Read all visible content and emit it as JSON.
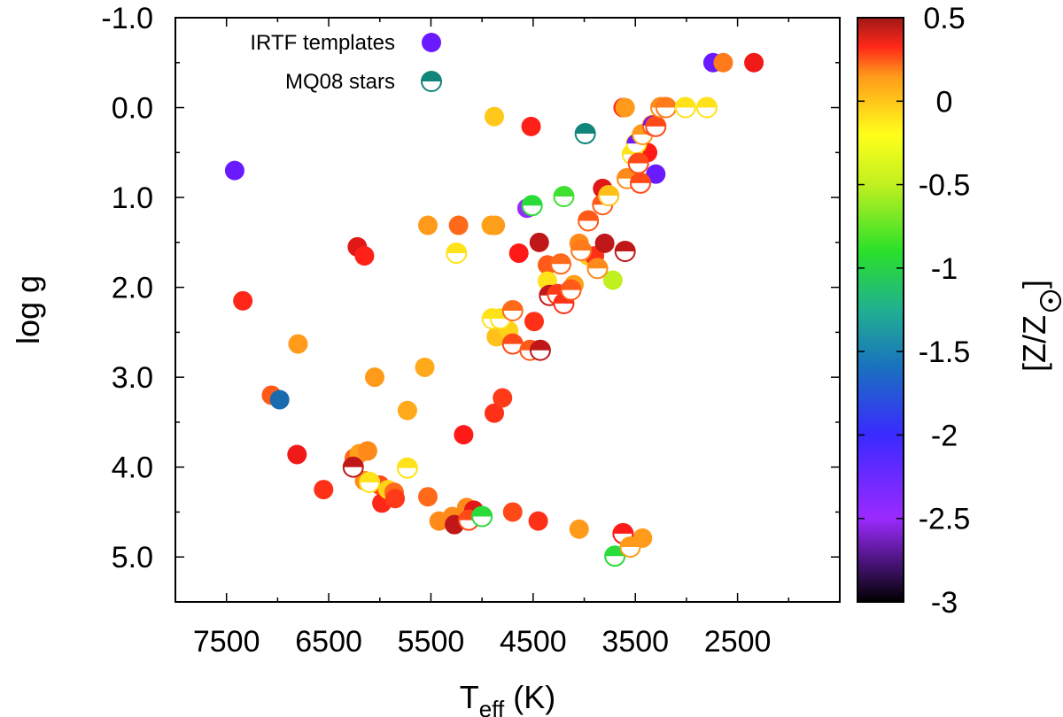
{
  "chart_data": {
    "type": "scatter",
    "xlabel_main": "T",
    "xlabel_sub": "eff",
    "xlabel_unit": " (K)",
    "ylabel": "log g",
    "colorbar_label": "[Z/Z",
    "colorbar_label_end": "]",
    "colorbar_sun_symbol": "sun-symbol",
    "xlim": [
      8000,
      1500
    ],
    "ylim": [
      -1.0,
      5.5
    ],
    "x_ticks": [
      7500,
      6500,
      5500,
      4500,
      3500,
      2500
    ],
    "x_tick_labels": [
      "7500",
      "6500",
      "5500",
      "4500",
      "3500",
      "2500"
    ],
    "y_ticks": [
      -1.0,
      0.0,
      1.0,
      2.0,
      3.0,
      4.0,
      5.0
    ],
    "y_tick_labels": [
      "-1.0",
      "0.0",
      "1.0",
      "2.0",
      "3.0",
      "4.0",
      "5.0"
    ],
    "colorbar_range": [
      -3,
      0.5
    ],
    "colorbar_ticks": [
      0.5,
      0,
      -0.5,
      -1,
      -1.5,
      -2,
      -2.5,
      -3
    ],
    "colorbar_tick_labels": [
      "0.5",
      "0",
      "-0.5",
      "-1",
      "-1.5",
      "-2",
      "-2.5",
      "-3"
    ],
    "legend": [
      {
        "label": "IRTF templates",
        "marker": "filled",
        "color": "#6a1aff"
      },
      {
        "label": "MQ08 stars",
        "marker": "half",
        "color": "#12857a"
      }
    ],
    "series": [
      {
        "name": "IRTF templates",
        "marker": "filled",
        "points": [
          {
            "teff": 7420,
            "logg": 0.7,
            "color": "#6a1aff"
          },
          {
            "teff": 7340,
            "logg": 2.15,
            "color": "#ff2818"
          },
          {
            "teff": 7060,
            "logg": 3.2,
            "color": "#ff5a18"
          },
          {
            "teff": 6980,
            "logg": 3.25,
            "color": "#1a6ab0"
          },
          {
            "teff": 6800,
            "logg": 2.63,
            "color": "#ff9a1a"
          },
          {
            "teff": 6810,
            "logg": 3.86,
            "color": "#f01a18"
          },
          {
            "teff": 6550,
            "logg": 4.25,
            "color": "#ff3018"
          },
          {
            "teff": 6220,
            "logg": 1.55,
            "color": "#e01818"
          },
          {
            "teff": 6150,
            "logg": 1.65,
            "color": "#ff2018"
          },
          {
            "teff": 6250,
            "logg": 3.9,
            "color": "#ff6a1a"
          },
          {
            "teff": 6200,
            "logg": 3.85,
            "color": "#ffa01a"
          },
          {
            "teff": 6120,
            "logg": 3.82,
            "color": "#ff8a1a"
          },
          {
            "teff": 6150,
            "logg": 4.15,
            "color": "#ff8a1a"
          },
          {
            "teff": 6050,
            "logg": 3.0,
            "color": "#ff9a1a"
          },
          {
            "teff": 6000,
            "logg": 4.2,
            "color": "#ff4a18"
          },
          {
            "teff": 5980,
            "logg": 4.4,
            "color": "#ff2818"
          },
          {
            "teff": 5920,
            "logg": 4.25,
            "color": "#ffd21a"
          },
          {
            "teff": 5860,
            "logg": 4.28,
            "color": "#ff6a1a"
          },
          {
            "teff": 5850,
            "logg": 4.35,
            "color": "#ff3a18"
          },
          {
            "teff": 5730,
            "logg": 3.37,
            "color": "#ffaa1a"
          },
          {
            "teff": 5560,
            "logg": 2.89,
            "color": "#ffaa1a"
          },
          {
            "teff": 5530,
            "logg": 1.31,
            "color": "#ff9a1a"
          },
          {
            "teff": 5530,
            "logg": 4.33,
            "color": "#ff6a1a"
          },
          {
            "teff": 5420,
            "logg": 4.6,
            "color": "#ff8a1a"
          },
          {
            "teff": 5290,
            "logg": 4.55,
            "color": "#ff8a1a"
          },
          {
            "teff": 5270,
            "logg": 4.64,
            "color": "#c01818"
          },
          {
            "teff": 5230,
            "logg": 1.31,
            "color": "#ff6a1a"
          },
          {
            "teff": 5150,
            "logg": 4.45,
            "color": "#ff8a1a"
          },
          {
            "teff": 5180,
            "logg": 3.64,
            "color": "#ff1a18"
          },
          {
            "teff": 5080,
            "logg": 4.48,
            "color": "#e01818"
          },
          {
            "teff": 4870,
            "logg": 1.31,
            "color": "#ff9a1a"
          },
          {
            "teff": 4910,
            "logg": 1.31,
            "color": "#ffa01a"
          },
          {
            "teff": 4880,
            "logg": 0.1,
            "color": "#ffc81a"
          },
          {
            "teff": 4880,
            "logg": 3.4,
            "color": "#ff3018"
          },
          {
            "teff": 4860,
            "logg": 2.55,
            "color": "#ffc01a"
          },
          {
            "teff": 4800,
            "logg": 3.23,
            "color": "#ff3a18"
          },
          {
            "teff": 4740,
            "logg": 2.48,
            "color": "#ffd21a"
          },
          {
            "teff": 4700,
            "logg": 4.5,
            "color": "#ff4a18"
          },
          {
            "teff": 4640,
            "logg": 1.62,
            "color": "#ff1a18"
          },
          {
            "teff": 4560,
            "logg": 1.12,
            "color": "#9a2aff"
          },
          {
            "teff": 4520,
            "logg": 0.21,
            "color": "#ff2018"
          },
          {
            "teff": 4490,
            "logg": 2.38,
            "color": "#ff3018"
          },
          {
            "teff": 4450,
            "logg": 4.6,
            "color": "#ff3018"
          },
          {
            "teff": 4440,
            "logg": 1.5,
            "color": "#c01818"
          },
          {
            "teff": 4360,
            "logg": 1.75,
            "color": "#ff5a18"
          },
          {
            "teff": 4360,
            "logg": 1.93,
            "color": "#ffe21a"
          },
          {
            "teff": 4100,
            "logg": 1.97,
            "color": "#ffa01a"
          },
          {
            "teff": 4050,
            "logg": 1.51,
            "color": "#ff8a1a"
          },
          {
            "teff": 4050,
            "logg": 4.69,
            "color": "#ff9a1a"
          },
          {
            "teff": 3960,
            "logg": 1.65,
            "color": "#ffc81a"
          },
          {
            "teff": 3900,
            "logg": 1.65,
            "color": "#ff3018"
          },
          {
            "teff": 3800,
            "logg": 1.51,
            "color": "#c01818"
          },
          {
            "teff": 3820,
            "logg": 0.9,
            "color": "#e01818"
          },
          {
            "teff": 3720,
            "logg": 1.92,
            "color": "#c0f020"
          },
          {
            "teff": 3620,
            "logg": 0.0,
            "color": "#ff3018"
          },
          {
            "teff": 3600,
            "logg": 0.0,
            "color": "#ff9a1a"
          },
          {
            "teff": 3430,
            "logg": 4.79,
            "color": "#ff9a1a"
          },
          {
            "teff": 3380,
            "logg": 0.5,
            "color": "#ff1a18"
          },
          {
            "teff": 3300,
            "logg": 0.74,
            "color": "#6a1aff"
          },
          {
            "teff": 2740,
            "logg": -0.5,
            "color": "#6a1aff"
          },
          {
            "teff": 2640,
            "logg": -0.5,
            "color": "#ff7a1a"
          },
          {
            "teff": 2340,
            "logg": -0.5,
            "color": "#f01a18"
          }
        ]
      },
      {
        "name": "MQ08 stars",
        "marker": "half",
        "points": [
          {
            "teff": 6260,
            "logg": 4.0,
            "top": "#c01818",
            "ring": "#c01818"
          },
          {
            "teff": 6100,
            "logg": 4.17,
            "top": "#ffe21a",
            "ring": "#ffe21a"
          },
          {
            "teff": 5730,
            "logg": 4.01,
            "top": "#ffe21a",
            "ring": "#ffe21a"
          },
          {
            "teff": 5250,
            "logg": 1.62,
            "top": "#ffe21a",
            "ring": "#ffe21a"
          },
          {
            "teff": 5130,
            "logg": 4.59,
            "top": "#ff4a18",
            "ring": "#ff4a18"
          },
          {
            "teff": 5000,
            "logg": 4.55,
            "top": "#2adc3a",
            "ring": "#2adc3a"
          },
          {
            "teff": 4900,
            "logg": 2.35,
            "top": "#ffe21a",
            "ring": "#ffe21a"
          },
          {
            "teff": 4820,
            "logg": 2.35,
            "top": "#ffe21a",
            "ring": "#ffe21a"
          },
          {
            "teff": 4700,
            "logg": 2.26,
            "top": "#ff6a1a",
            "ring": "#ff6a1a"
          },
          {
            "teff": 4700,
            "logg": 2.63,
            "top": "#ff4a18",
            "ring": "#ff4a18"
          },
          {
            "teff": 4510,
            "logg": 1.09,
            "top": "#2adc3a",
            "ring": "#2adc3a"
          },
          {
            "teff": 4530,
            "logg": 2.7,
            "top": "#ff5a18",
            "ring": "#ff5a18"
          },
          {
            "teff": 4430,
            "logg": 2.7,
            "top": "#c01818",
            "ring": "#c01818"
          },
          {
            "teff": 4340,
            "logg": 2.09,
            "top": "#c01818",
            "ring": "#c01818"
          },
          {
            "teff": 4260,
            "logg": 2.08,
            "top": "#ff3a18",
            "ring": "#ff3a18"
          },
          {
            "teff": 4230,
            "logg": 1.74,
            "top": "#ff6a1a",
            "ring": "#ff6a1a"
          },
          {
            "teff": 4200,
            "logg": 2.18,
            "top": "#ff3018",
            "ring": "#ff3018"
          },
          {
            "teff": 4200,
            "logg": 0.99,
            "top": "#40e030",
            "ring": "#40e030"
          },
          {
            "teff": 4130,
            "logg": 2.03,
            "top": "#ff5a18",
            "ring": "#ff5a18"
          },
          {
            "teff": 4030,
            "logg": 1.59,
            "top": "#ff7a1a",
            "ring": "#ff7a1a"
          },
          {
            "teff": 3990,
            "logg": 0.29,
            "top": "#12857a",
            "ring": "#12857a"
          },
          {
            "teff": 3960,
            "logg": 1.26,
            "top": "#ff5a18",
            "ring": "#ff5a18"
          },
          {
            "teff": 3870,
            "logg": 1.79,
            "top": "#ff8a1a",
            "ring": "#ff8a1a"
          },
          {
            "teff": 3820,
            "logg": 1.08,
            "top": "#ff5a18",
            "ring": "#ff5a18"
          },
          {
            "teff": 3760,
            "logg": 0.98,
            "top": "#ffc01a",
            "ring": "#ffc01a"
          },
          {
            "teff": 3700,
            "logg": 4.99,
            "top": "#2adc3a",
            "ring": "#2adc3a"
          },
          {
            "teff": 3600,
            "logg": 1.6,
            "top": "#c01818",
            "ring": "#c01818"
          },
          {
            "teff": 3580,
            "logg": 0.79,
            "top": "#ff8a1a",
            "ring": "#ff8a1a"
          },
          {
            "teff": 3620,
            "logg": 4.74,
            "top": "#ff1a18",
            "ring": "#ff1a18"
          },
          {
            "teff": 3550,
            "logg": 4.89,
            "top": "#ff9a1a",
            "ring": "#ff9a1a"
          },
          {
            "teff": 3530,
            "logg": 0.52,
            "top": "#ffe21a",
            "ring": "#ffe21a"
          },
          {
            "teff": 3490,
            "logg": 0.4,
            "top": "#6a1aff",
            "ring": "#ffe21a"
          },
          {
            "teff": 3470,
            "logg": 0.62,
            "top": "#ff4a18",
            "ring": "#ff4a18"
          },
          {
            "teff": 3450,
            "logg": 0.84,
            "top": "#ff4a18",
            "ring": "#ff4a18"
          },
          {
            "teff": 3430,
            "logg": 0.3,
            "top": "#ff9a1a",
            "ring": "#ff9a1a"
          },
          {
            "teff": 3330,
            "logg": 0.2,
            "top": "#6a1aff",
            "ring": "#ff5a18"
          },
          {
            "teff": 3300,
            "logg": 0.21,
            "top": "#ff4a18",
            "ring": "#ff4a18"
          },
          {
            "teff": 3250,
            "logg": 0.0,
            "top": "#ff8a1a",
            "ring": "#ff8a1a"
          },
          {
            "teff": 3200,
            "logg": 0.0,
            "top": "#ff7a1a",
            "ring": "#ff7a1a"
          },
          {
            "teff": 3010,
            "logg": 0.0,
            "top": "#ffe21a",
            "ring": "#ffe21a"
          },
          {
            "teff": 2800,
            "logg": 0.0,
            "top": "#ffe21a",
            "ring": "#ffe21a"
          }
        ]
      }
    ]
  }
}
